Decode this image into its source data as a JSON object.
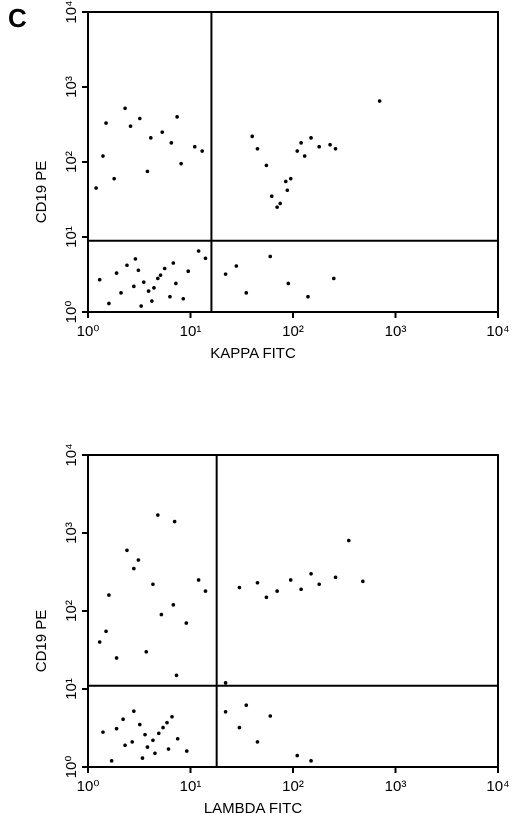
{
  "panel_label": "C",
  "chart_data": [
    {
      "type": "scatter",
      "x_label": "KAPPA FITC",
      "y_label": "CD19 PE",
      "log_x": true,
      "log_y": true,
      "color": "#000000",
      "xlim": [
        1,
        10000
      ],
      "ylim": [
        1,
        10000
      ],
      "xticks": [
        {
          "value": 1,
          "label": "10⁰"
        },
        {
          "value": 10,
          "label": "10¹"
        },
        {
          "value": 100,
          "label": "10²"
        },
        {
          "value": 1000,
          "label": "10³"
        },
        {
          "value": 10000,
          "label": "10⁴"
        }
      ],
      "yticks": [
        {
          "value": 1,
          "label": "10⁰"
        },
        {
          "value": 10,
          "label": "10¹"
        },
        {
          "value": 100,
          "label": "10²"
        },
        {
          "value": 1000,
          "label": "10³"
        },
        {
          "value": 10000,
          "label": "10⁴"
        }
      ],
      "quadrant_x": 16,
      "quadrant_y": 8.9,
      "x": [
        2.1,
        3.5,
        4.2,
        5.1,
        2.8,
        6.3,
        3.1,
        4.8,
        1.6,
        7.2,
        2.4,
        3.9,
        5.6,
        1.3,
        8.5,
        2.9,
        4.4,
        3.3,
        6.8,
        1.9,
        1.4,
        2.6,
        4.1,
        6.5,
        1.2,
        3.2,
        8.1,
        11,
        1.8,
        5.3,
        2.3,
        13,
        1.5,
        3.8,
        7.4,
        45,
        62,
        88,
        120,
        75,
        95,
        150,
        180,
        55,
        70,
        110,
        230,
        40,
        85,
        130,
        260,
        700,
        22,
        35,
        60,
        90,
        140,
        28,
        250,
        12,
        9.5,
        14
      ],
      "y": [
        1.8,
        2.5,
        1.4,
        3.1,
        2.2,
        1.6,
        3.6,
        2.8,
        1.3,
        2.4,
        4.2,
        1.9,
        3.8,
        2.7,
        1.5,
        5.1,
        2.1,
        1.2,
        4.5,
        3.3,
        120,
        300,
        210,
        180,
        45,
        380,
        95,
        160,
        60,
        250,
        520,
        140,
        330,
        75,
        400,
        150,
        35,
        42,
        180,
        28,
        60,
        210,
        160,
        90,
        25,
        140,
        170,
        220,
        55,
        120,
        150,
        650,
        3.2,
        1.8,
        5.5,
        2.4,
        1.6,
        4.1,
        2.8,
        6.5,
        3.5,
        5.2
      ]
    },
    {
      "type": "scatter",
      "x_label": "LAMBDA FITC",
      "y_label": "CD19 PE",
      "log_x": true,
      "log_y": true,
      "color": "#000000",
      "xlim": [
        1,
        10000
      ],
      "ylim": [
        1,
        10000
      ],
      "xticks": [
        {
          "value": 1,
          "label": "10⁰"
        },
        {
          "value": 10,
          "label": "10¹"
        },
        {
          "value": 100,
          "label": "10²"
        },
        {
          "value": 1000,
          "label": "10³"
        },
        {
          "value": 10000,
          "label": "10⁴"
        }
      ],
      "yticks": [
        {
          "value": 1,
          "label": "10⁰"
        },
        {
          "value": 10,
          "label": "10¹"
        },
        {
          "value": 100,
          "label": "10²"
        },
        {
          "value": 1000,
          "label": "10³"
        },
        {
          "value": 10000,
          "label": "10⁴"
        }
      ],
      "quadrant_x": 18,
      "quadrant_y": 11,
      "x": [
        2.3,
        3.6,
        4.5,
        5.4,
        2.7,
        6.1,
        3.2,
        4.9,
        1.7,
        7.5,
        2.2,
        3.8,
        5.9,
        1.4,
        9.2,
        2.8,
        4.3,
        3.4,
        6.6,
        1.9,
        1.6,
        2.8,
        4.3,
        6.8,
        1.3,
        3.1,
        9.1,
        12,
        1.9,
        5.2,
        2.4,
        14,
        1.5,
        3.7,
        7.3,
        4.8,
        7,
        30,
        45,
        70,
        95,
        120,
        180,
        260,
        350,
        55,
        150,
        480,
        22,
        22,
        30,
        45,
        60,
        110,
        150,
        35
      ],
      "y": [
        1.9,
        2.6,
        1.5,
        3.2,
        2.1,
        1.7,
        3.5,
        2.7,
        1.2,
        2.3,
        4.1,
        1.8,
        3.7,
        2.8,
        1.6,
        5.2,
        2.2,
        1.3,
        4.4,
        3.1,
        160,
        350,
        220,
        120,
        40,
        450,
        70,
        250,
        25,
        90,
        600,
        180,
        55,
        30,
        15,
        1700,
        1400,
        200,
        230,
        180,
        250,
        190,
        220,
        270,
        800,
        150,
        300,
        240,
        12,
        5.1,
        3.2,
        2.1,
        4.5,
        1.4,
        1.2,
        6.2
      ]
    }
  ]
}
